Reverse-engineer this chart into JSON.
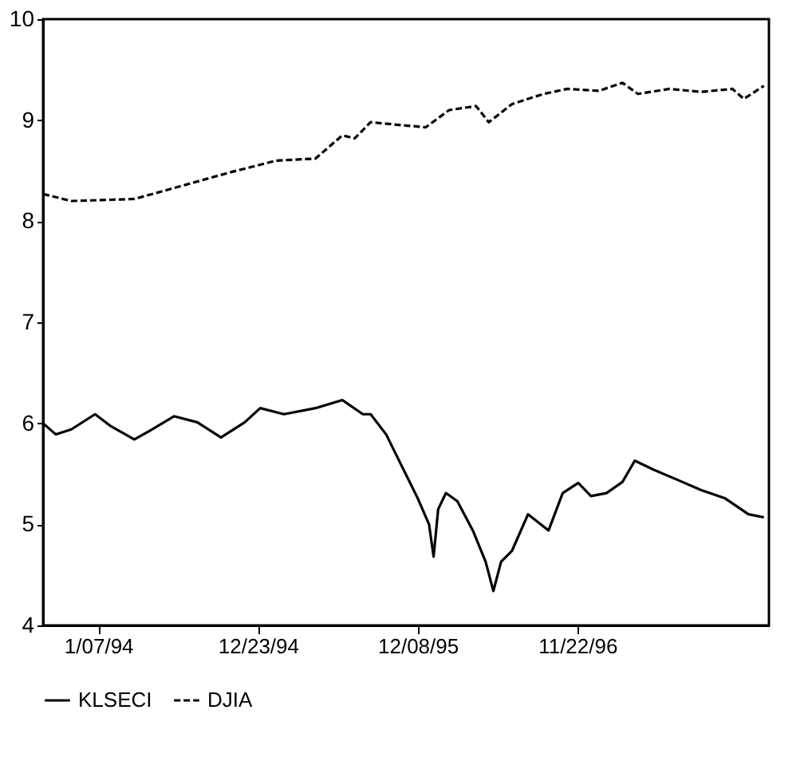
{
  "chart_data": {
    "type": "line",
    "xlim": [
      "1993-09-08",
      "1998-01-16"
    ],
    "ylim": [
      4,
      10
    ],
    "yticks": [
      4,
      5,
      6,
      7,
      8,
      9,
      10
    ],
    "xticks": [
      {
        "value": "1994-01-07",
        "label": "1/07/94"
      },
      {
        "value": "1994-12-23",
        "label": "12/23/94"
      },
      {
        "value": "1995-12-08",
        "label": "12/08/95"
      },
      {
        "value": "1996-11-22",
        "label": "11/22/96"
      }
    ],
    "grid": false,
    "legend": "bottom",
    "marker": "none",
    "series": [
      {
        "name": "KLSECI",
        "color": "#000000",
        "line_style": "solid",
        "x": [
          "1993-09-08",
          "1993-10-06",
          "1993-11-09",
          "1993-12-31",
          "1994-02-04",
          "1994-03-27",
          "1994-05-01",
          "1994-06-22",
          "1994-08-12",
          "1994-10-03",
          "1994-11-24",
          "1994-12-28",
          "1995-02-18",
          "1995-04-28",
          "1995-06-26",
          "1995-08-10",
          "1995-08-27",
          "1995-09-30",
          "1995-11-04",
          "1995-12-08",
          "1996-01-02",
          "1996-01-12",
          "1996-01-22",
          "1996-02-08",
          "1996-03-04",
          "1996-04-07",
          "1996-05-05",
          "1996-05-22",
          "1996-06-08",
          "1996-07-02",
          "1996-08-06",
          "1996-09-20",
          "1996-10-21",
          "1996-11-24",
          "1996-12-22",
          "1997-01-25",
          "1997-03-01",
          "1997-03-28",
          "1997-05-09",
          "1997-06-30",
          "1997-08-20",
          "1997-10-11",
          "1997-12-02",
          "1998-01-05"
        ],
        "values": [
          6.0,
          5.89,
          5.94,
          6.09,
          5.97,
          5.84,
          5.93,
          6.07,
          6.01,
          5.86,
          6.01,
          6.15,
          6.09,
          6.15,
          6.23,
          6.09,
          6.09,
          5.89,
          5.57,
          5.26,
          5.0,
          4.68,
          5.15,
          5.31,
          5.23,
          4.94,
          4.63,
          4.34,
          4.63,
          4.74,
          5.1,
          4.94,
          5.31,
          5.41,
          5.28,
          5.31,
          5.42,
          5.63,
          5.54,
          5.44,
          5.34,
          5.26,
          5.1,
          5.07
        ]
      },
      {
        "name": "DJIA",
        "color": "#000000",
        "line_style": "dashed",
        "x": [
          "1993-09-08",
          "1993-11-09",
          "1994-03-27",
          "1994-07-09",
          "1994-10-20",
          "1995-02-01",
          "1995-04-28",
          "1995-06-26",
          "1995-07-23",
          "1995-08-27",
          "1995-11-04",
          "1995-12-26",
          "1996-02-15",
          "1996-04-14",
          "1996-05-12",
          "1996-07-02",
          "1996-09-09",
          "1996-10-31",
          "1997-01-08",
          "1997-03-01",
          "1997-04-04",
          "1997-06-12",
          "1997-08-20",
          "1997-10-28",
          "1997-11-22",
          "1998-01-05"
        ],
        "values": [
          8.27,
          8.2,
          8.22,
          8.35,
          8.48,
          8.6,
          8.62,
          8.85,
          8.82,
          8.98,
          8.95,
          8.93,
          9.1,
          9.14,
          8.98,
          9.16,
          9.26,
          9.31,
          9.29,
          9.37,
          9.26,
          9.31,
          9.28,
          9.31,
          9.21,
          9.34
        ]
      }
    ]
  }
}
